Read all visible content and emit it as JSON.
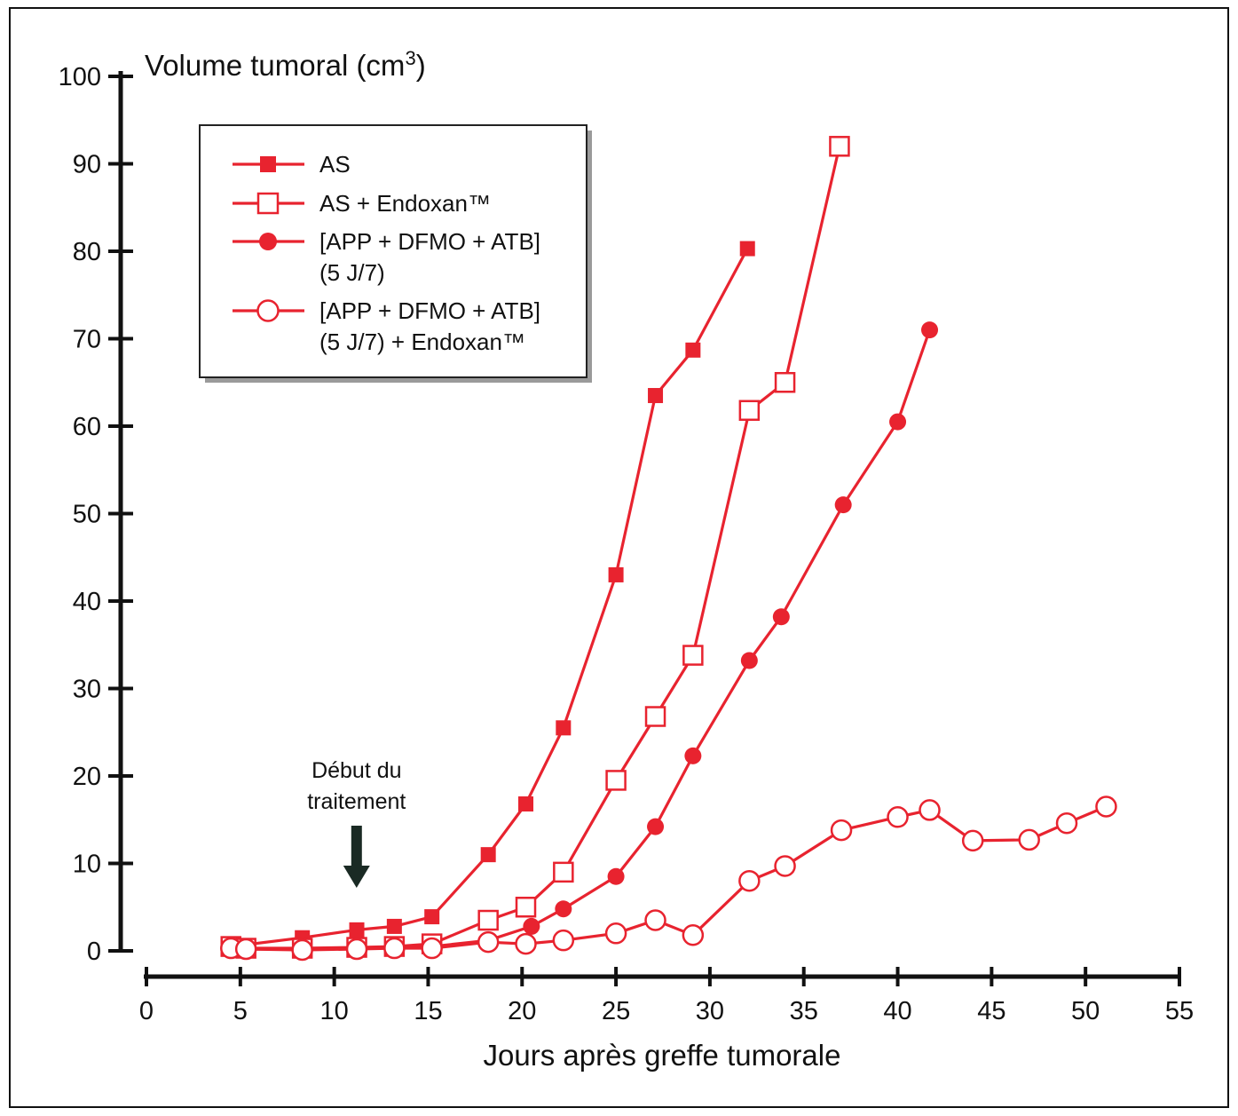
{
  "chart_data": {
    "type": "line",
    "title": "",
    "ylabel": "Volume tumoral (cm",
    "ylabel_sup": "3",
    "ylabel_close": ")",
    "xlabel": "Jours après greffe tumorale",
    "xlim": [
      0,
      55
    ],
    "ylim": [
      0,
      100
    ],
    "x_ticks": [
      0,
      5,
      10,
      15,
      20,
      25,
      30,
      35,
      40,
      45,
      50,
      55
    ],
    "y_ticks": [
      0,
      10,
      20,
      30,
      40,
      50,
      60,
      70,
      80,
      90,
      100
    ],
    "grid": false,
    "legend_position": "top-left",
    "annotation": {
      "lines": [
        "Début du",
        "traitement"
      ],
      "x": 11
    },
    "series": [
      {
        "name": "AS",
        "name_lines": [
          "AS"
        ],
        "marker": "filled-square",
        "x": [
          4.5,
          8.3,
          11.2,
          13.2,
          15.2,
          18.2,
          20.2,
          22.2,
          25.0,
          27.1,
          29.1,
          32.0
        ],
        "y": [
          0.5,
          1.5,
          2.4,
          2.8,
          3.9,
          11.0,
          16.8,
          25.5,
          43.0,
          63.5,
          68.7,
          80.3
        ]
      },
      {
        "name": "AS + Endoxan™",
        "name_lines": [
          "AS + Endoxan™"
        ],
        "marker": "open-square",
        "x": [
          4.5,
          5.3,
          8.3,
          11.2,
          13.2,
          15.2,
          18.2,
          20.2,
          22.2,
          25.0,
          27.1,
          29.1,
          32.1,
          34.0,
          36.9
        ],
        "y": [
          0.5,
          0.3,
          0.3,
          0.4,
          0.5,
          0.8,
          3.5,
          5.0,
          9.0,
          19.5,
          26.8,
          33.8,
          61.8,
          65.0,
          92.0
        ]
      },
      {
        "name": "[APP + DFMO + ATB] (5 J/7)",
        "name_lines": [
          "[APP + DFMO + ATB]",
          "(5 J/7)"
        ],
        "marker": "filled-circle",
        "x": [
          4.5,
          5.3,
          8.3,
          11.2,
          13.2,
          15.2,
          18.2,
          20.5,
          22.2,
          25.0,
          27.1,
          29.1,
          32.1,
          33.8,
          37.1,
          40.0,
          41.7
        ],
        "y": [
          0.3,
          0.2,
          0.2,
          0.3,
          0.4,
          0.5,
          1.2,
          2.8,
          4.8,
          8.5,
          14.2,
          22.3,
          33.2,
          38.2,
          51.0,
          60.5,
          71.0
        ]
      },
      {
        "name": "[APP + DFMO + ATB] (5 J/7) + Endoxan™",
        "name_lines": [
          "[APP + DFMO + ATB]",
          "(5 J/7) + Endoxan™"
        ],
        "marker": "open-circle",
        "x": [
          4.5,
          5.3,
          8.3,
          11.2,
          13.2,
          15.2,
          18.2,
          20.2,
          22.2,
          25.0,
          27.1,
          29.1,
          32.1,
          34.0,
          37.0,
          40.0,
          41.7,
          44.0,
          47.0,
          49.0,
          51.1
        ],
        "y": [
          0.3,
          0.2,
          0.1,
          0.2,
          0.3,
          0.3,
          1.0,
          0.8,
          1.2,
          2.0,
          3.5,
          1.8,
          8.0,
          9.7,
          13.8,
          15.3,
          16.1,
          12.6,
          12.7,
          14.6,
          16.5
        ]
      }
    ]
  },
  "colors": {
    "series": "#e8232f",
    "axis": "#111111",
    "annotation_arrow": "#1a2a24"
  }
}
